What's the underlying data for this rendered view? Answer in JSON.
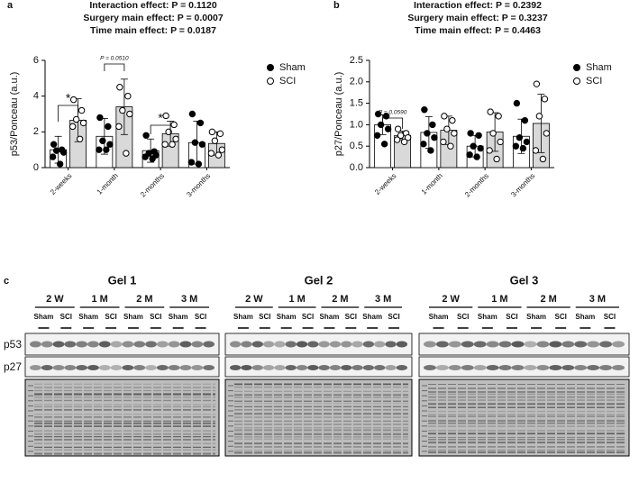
{
  "chart_data": [
    {
      "type": "bar",
      "panel_label": "a",
      "title": [
        "Interaction effect: P = 0.1120",
        "Surgery main effect: P = 0.0007",
        "Time main effect: P = 0.0187"
      ],
      "y_label": "p53/Ponceau (a.u.)",
      "categories": [
        "2-weeks",
        "1-month",
        "2-months",
        "3-months"
      ],
      "series": [
        {
          "name": "Sham",
          "color": "#ffffff",
          "values": [
            1.0,
            1.75,
            0.95,
            1.4
          ],
          "sd": [
            0.75,
            1.0,
            0.65,
            1.2
          ],
          "points": [
            [
              1.3,
              1.0,
              0.95,
              0.85,
              0.6,
              0.2
            ],
            [
              2.8,
              2.3,
              1.5,
              1.3,
              1.0,
              1.0
            ],
            [
              1.8,
              0.9,
              0.8,
              0.7,
              0.6,
              0.5
            ],
            [
              3.0,
              2.5,
              1.4,
              1.3,
              0.3,
              0.2
            ]
          ]
        },
        {
          "name": "SCI",
          "color": "#d9d9d9",
          "values": [
            2.65,
            3.4,
            1.9,
            1.35
          ],
          "sd": [
            1.2,
            1.55,
            0.7,
            0.65
          ],
          "points": [
            [
              3.8,
              3.2,
              2.7,
              2.5,
              2.3,
              1.6
            ],
            [
              4.5,
              4.0,
              3.2,
              3.0,
              2.3,
              0.8
            ],
            [
              2.9,
              2.4,
              2.0,
              1.6,
              1.3,
              1.3
            ],
            [
              2.0,
              1.9,
              1.5,
              1.0,
              0.8,
              0.7
            ]
          ]
        }
      ],
      "annotations": [
        "*",
        "P = 0.0510",
        "*"
      ],
      "ylim": [
        0,
        6
      ],
      "yticks": [
        0,
        2,
        4,
        6
      ]
    },
    {
      "type": "bar",
      "panel_label": "b",
      "title": [
        "Interaction effect: P = 0.2392",
        "Surgery main effect: P = 0.3237",
        "Time main effect: P = 0.4463"
      ],
      "y_label": "p27/Ponceau (a.u.)",
      "categories": [
        "2-weeks",
        "1-month",
        "2-months",
        "3-months"
      ],
      "series": [
        {
          "name": "Sham",
          "color": "#ffffff",
          "values": [
            1.0,
            0.82,
            0.5,
            0.73
          ],
          "sd": [
            0.23,
            0.37,
            0.25,
            0.4
          ],
          "points": [
            [
              1.25,
              1.2,
              1.0,
              0.9,
              0.75,
              0.55
            ],
            [
              1.35,
              1.0,
              0.8,
              0.7,
              0.55,
              0.4
            ],
            [
              0.8,
              0.75,
              0.5,
              0.45,
              0.3,
              0.25
            ],
            [
              1.5,
              1.1,
              0.7,
              0.6,
              0.5,
              0.45
            ]
          ]
        },
        {
          "name": "SCI",
          "color": "#d9d9d9",
          "values": [
            0.75,
            0.87,
            0.83,
            1.03
          ],
          "sd": [
            0.1,
            0.33,
            0.45,
            0.68
          ],
          "points": [
            [
              0.9,
              0.8,
              0.75,
              0.7,
              0.65,
              0.6
            ],
            [
              1.2,
              1.1,
              0.9,
              0.8,
              0.6,
              0.5
            ],
            [
              1.3,
              1.2,
              0.8,
              0.6,
              0.4,
              0.2
            ],
            [
              1.95,
              1.6,
              1.2,
              0.8,
              0.4,
              0.2
            ]
          ]
        }
      ],
      "annotations": [
        "P = 0.0590"
      ],
      "ylim": [
        0,
        2.5
      ],
      "yticks": [
        {
          "value": 0,
          "label": "0.0"
        },
        0.5,
        {
          "value": 1,
          "label": "1.0"
        },
        1.5,
        {
          "value": 2,
          "label": "2.0"
        },
        2.5
      ]
    }
  ],
  "panel_c": {
    "panel_label": "c",
    "row_labels": [
      "p53",
      "p27"
    ],
    "gels": [
      {
        "title": "Gel 1",
        "groups": [
          "2 W",
          "1 M",
          "2 M",
          "3 M"
        ],
        "lanes": [
          "Sham",
          "SCI"
        ]
      },
      {
        "title": "Gel 2",
        "groups": [
          "2 W",
          "1 M",
          "2 M",
          "3 M"
        ],
        "lanes": [
          "Sham",
          "SCI"
        ]
      },
      {
        "title": "Gel 3",
        "groups": [
          "2 W",
          "1 M",
          "2 M",
          "3 M"
        ],
        "lanes": [
          "Sham",
          "SCI"
        ]
      }
    ]
  }
}
